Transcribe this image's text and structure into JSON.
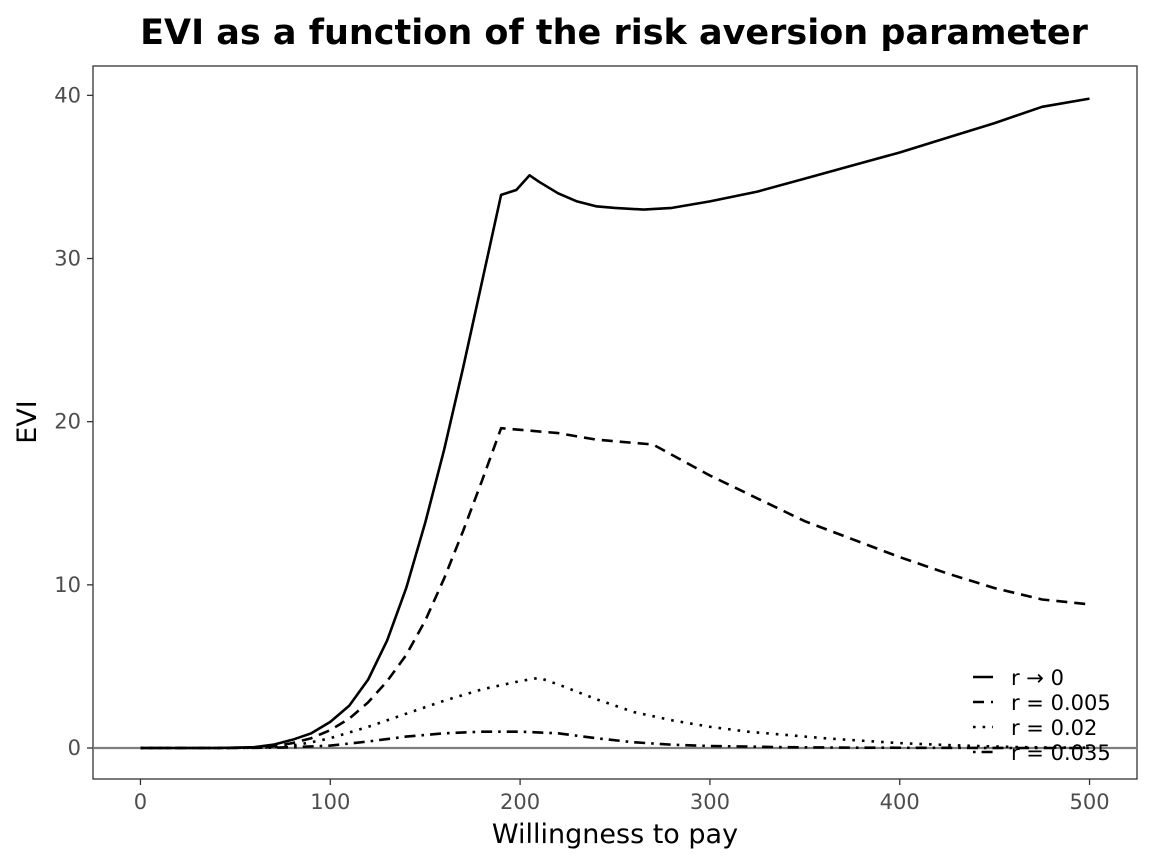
{
  "chart_data": {
    "type": "line",
    "title": "EVI as a function of the risk aversion parameter",
    "xlabel": "Willingness to pay",
    "ylabel": "EVI",
    "xlim": [
      -25,
      525
    ],
    "ylim": [
      -1.9,
      41.8
    ],
    "x_ticks": [
      0,
      100,
      200,
      300,
      400,
      500
    ],
    "y_ticks": [
      0,
      10,
      20,
      30,
      40
    ],
    "reference_line_y": 0,
    "grid": false,
    "legend": {
      "position": "bottom-right, inside plot"
    },
    "series": [
      {
        "name": "r → 0",
        "linestyle": "solid",
        "x": [
          0,
          20,
          40,
          60,
          70,
          80,
          90,
          100,
          110,
          120,
          130,
          140,
          150,
          160,
          170,
          180,
          190,
          198,
          205,
          210,
          220,
          230,
          240,
          250,
          265,
          280,
          300,
          325,
          350,
          375,
          400,
          425,
          450,
          475,
          500
        ],
        "y": [
          0,
          0,
          0,
          0.05,
          0.2,
          0.5,
          0.9,
          1.6,
          2.6,
          4.2,
          6.6,
          9.8,
          13.8,
          18.3,
          23.3,
          28.6,
          33.9,
          34.2,
          35.1,
          34.7,
          34.0,
          33.5,
          33.2,
          33.1,
          33.0,
          33.1,
          33.5,
          34.1,
          34.9,
          35.7,
          36.5,
          37.4,
          38.3,
          39.3,
          39.8
        ]
      },
      {
        "name": "r = 0.005",
        "linestyle": "dashed",
        "x": [
          0,
          20,
          40,
          60,
          70,
          80,
          90,
          100,
          110,
          120,
          130,
          140,
          150,
          160,
          170,
          180,
          190,
          200,
          220,
          240,
          260,
          270,
          300,
          325,
          350,
          375,
          400,
          425,
          450,
          475,
          500
        ],
        "y": [
          0,
          0,
          0,
          0.03,
          0.1,
          0.3,
          0.6,
          1.1,
          1.8,
          2.8,
          4.1,
          5.7,
          7.8,
          10.4,
          13.3,
          16.4,
          19.6,
          19.5,
          19.3,
          18.9,
          18.7,
          18.6,
          16.7,
          15.3,
          13.9,
          12.8,
          11.7,
          10.7,
          9.8,
          9.1,
          8.8
        ]
      },
      {
        "name": "r = 0.02",
        "linestyle": "dotted",
        "x": [
          0,
          20,
          40,
          60,
          70,
          80,
          90,
          100,
          120,
          140,
          160,
          180,
          200,
          210,
          220,
          240,
          260,
          280,
          300,
          320,
          340,
          360,
          380,
          400,
          420,
          440,
          460,
          480,
          500
        ],
        "y": [
          0,
          0,
          0,
          0.02,
          0.06,
          0.15,
          0.35,
          0.6,
          1.3,
          2.1,
          2.9,
          3.6,
          4.1,
          4.3,
          3.9,
          3.0,
          2.2,
          1.7,
          1.3,
          1.0,
          0.8,
          0.6,
          0.45,
          0.3,
          0.2,
          0.12,
          0.06,
          0.03,
          0.02
        ]
      },
      {
        "name": "r = 0.035",
        "linestyle": "dotdash",
        "x": [
          0,
          20,
          40,
          60,
          70,
          80,
          90,
          100,
          120,
          140,
          160,
          180,
          200,
          220,
          240,
          260,
          280,
          300,
          340,
          380,
          420,
          460,
          500
        ],
        "y": [
          0,
          0,
          0,
          0.01,
          0.02,
          0.05,
          0.1,
          0.15,
          0.4,
          0.7,
          0.9,
          1.0,
          1.0,
          0.9,
          0.6,
          0.35,
          0.2,
          0.12,
          0.05,
          0.02,
          0.01,
          0.0,
          0.0
        ]
      }
    ]
  }
}
